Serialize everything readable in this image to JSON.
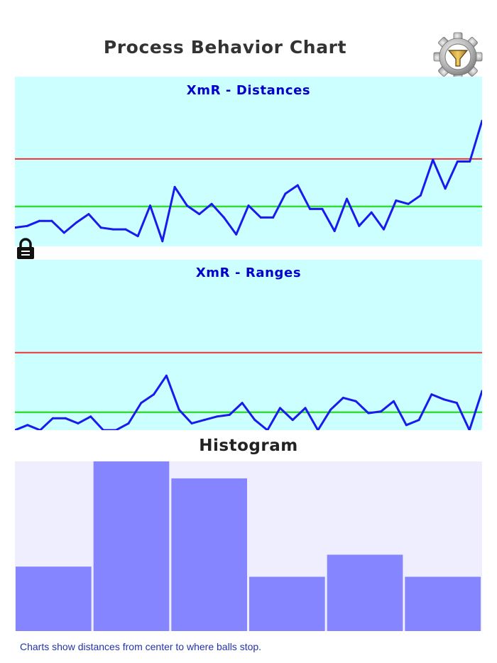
{
  "page": {
    "title": "Process Behavior Chart"
  },
  "settings": {
    "icon": "gear-funnel-icon"
  },
  "lock": {
    "icon": "lock-icon"
  },
  "colors": {
    "chart_bg": "#ccffff",
    "series": "#1a1aee",
    "upper_limit": "#ee3333",
    "center_line": "#33dd33",
    "hist_bg": "#eeeeff",
    "hist_bar": "#8585ff"
  },
  "histogram": {
    "title": "Histogram"
  },
  "footnote": "Charts show distances from center to where balls stop.",
  "chart_data": [
    {
      "type": "line",
      "title": "XmR - Distances",
      "ylim": [
        0,
        100
      ],
      "limits": {
        "upper": 51.5,
        "center": 23.5
      },
      "values": [
        11,
        12,
        15,
        15,
        8,
        14,
        19,
        11,
        10,
        10,
        6,
        24,
        3,
        35,
        24,
        19,
        25,
        17,
        7,
        24,
        17,
        17,
        31,
        36,
        22,
        22,
        9,
        28,
        12,
        20,
        10,
        27,
        25,
        30,
        51,
        34,
        50,
        50,
        74
      ]
    },
    {
      "type": "line",
      "title": "XmR - Ranges",
      "ylim": [
        0,
        100
      ],
      "limits": {
        "upper": 45.5,
        "center": 10.5
      },
      "values": [
        0,
        3,
        0,
        7,
        7,
        4,
        8,
        0,
        0,
        4,
        16,
        21,
        32,
        12,
        4,
        6,
        8,
        9,
        16,
        6,
        0,
        13,
        6,
        13,
        0,
        12,
        19,
        17,
        10,
        11,
        17,
        3,
        6,
        21,
        18,
        16,
        0,
        23
      ]
    },
    {
      "type": "bar",
      "title": "Histogram",
      "ylim": [
        0,
        100
      ],
      "values": [
        38,
        100,
        90,
        32,
        45,
        32
      ]
    }
  ]
}
